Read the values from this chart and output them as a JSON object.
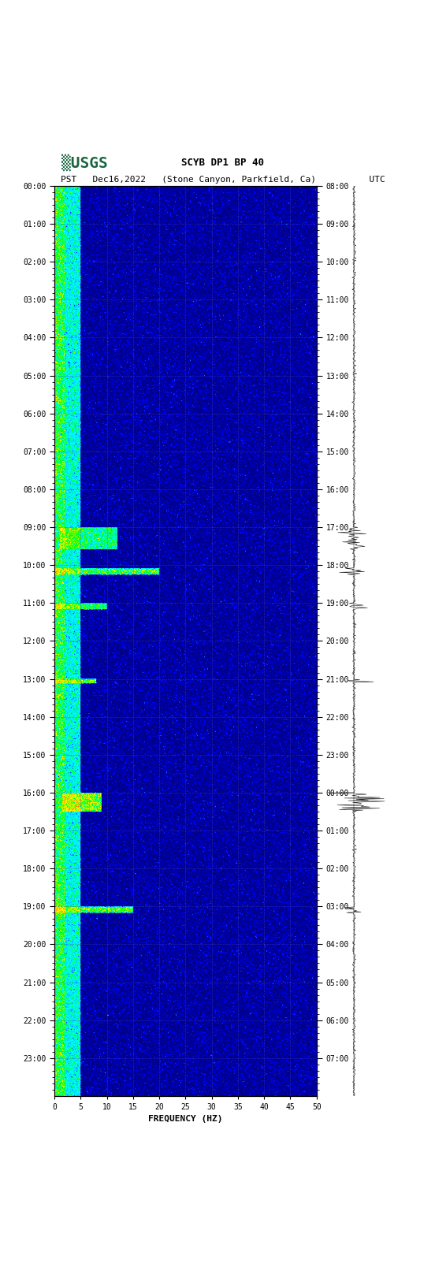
{
  "title_line1": "SCYB DP1 BP 40",
  "title_line2": "PST   Dec16,2022   (Stone Canyon, Parkfield, Ca)          UTC",
  "xlabel": "FREQUENCY (HZ)",
  "freq_min": 0,
  "freq_max": 50,
  "freq_ticks": [
    0,
    5,
    10,
    15,
    20,
    25,
    30,
    35,
    40,
    45,
    50
  ],
  "pst_labels": [
    "00:00",
    "01:00",
    "02:00",
    "03:00",
    "04:00",
    "05:00",
    "06:00",
    "07:00",
    "08:00",
    "09:00",
    "10:00",
    "11:00",
    "12:00",
    "13:00",
    "14:00",
    "15:00",
    "16:00",
    "17:00",
    "18:00",
    "19:00",
    "20:00",
    "21:00",
    "22:00",
    "23:00"
  ],
  "utc_labels": [
    "08:00",
    "09:00",
    "10:00",
    "11:00",
    "12:00",
    "13:00",
    "14:00",
    "15:00",
    "16:00",
    "17:00",
    "18:00",
    "19:00",
    "20:00",
    "21:00",
    "22:00",
    "23:00",
    "00:00",
    "01:00",
    "02:00",
    "03:00",
    "04:00",
    "05:00",
    "06:00",
    "07:00"
  ],
  "bg_color": "#0000aa",
  "spectrogram_base_color": "#0000cc",
  "n_time": 1440,
  "n_freq": 500,
  "usgs_green": "#1a6640",
  "figure_bg": "#ffffff",
  "minor_tick_interval_minutes": 10
}
